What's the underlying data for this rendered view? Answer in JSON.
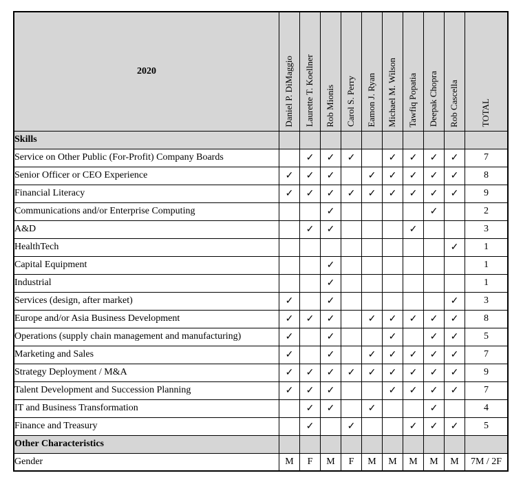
{
  "header": {
    "year": "2020",
    "names": [
      "Daniel P. DiMaggio",
      "Laurette T. Koellner",
      "Rob Mionis",
      "Carol S. Perry",
      "Eamon J. Ryan",
      "Michael M. Wilson",
      "Tawfiq Popatia",
      "Deepak Chopra",
      "Rob Cascella"
    ],
    "total_label": "TOTAL"
  },
  "check_glyph": "✓",
  "colors": {
    "header_fill": "#d6d6d6",
    "border": "#000000",
    "text": "#000000"
  },
  "rows": [
    {
      "type": "section",
      "label": "Skills",
      "cells": [
        "",
        "",
        "",
        "",
        "",
        "",
        "",
        "",
        ""
      ],
      "total": ""
    },
    {
      "type": "data",
      "label": "Service on Other Public (For-Profit) Company Boards",
      "cells": [
        "",
        "✓",
        "✓",
        "✓",
        "",
        "✓",
        "✓",
        "✓",
        "✓"
      ],
      "total": "7"
    },
    {
      "type": "data",
      "label": "Senior Officer or CEO Experience",
      "cells": [
        "✓",
        "✓",
        "✓",
        "",
        "✓",
        "✓",
        "✓",
        "✓",
        "✓"
      ],
      "total": "8"
    },
    {
      "type": "data",
      "label": "Financial Literacy",
      "cells": [
        "✓",
        "✓",
        "✓",
        "✓",
        "✓",
        "✓",
        "✓",
        "✓",
        "✓"
      ],
      "total": "9"
    },
    {
      "type": "data",
      "label": "Communications and/or Enterprise Computing",
      "cells": [
        "",
        "",
        "✓",
        "",
        "",
        "",
        "",
        "✓",
        ""
      ],
      "total": "2"
    },
    {
      "type": "data",
      "label": "A&D",
      "cells": [
        "",
        "✓",
        "✓",
        "",
        "",
        "",
        "✓",
        "",
        ""
      ],
      "total": "3"
    },
    {
      "type": "data",
      "label": "HealthTech",
      "cells": [
        "",
        "",
        "",
        "",
        "",
        "",
        "",
        "",
        "✓"
      ],
      "total": "1"
    },
    {
      "type": "data",
      "label": "Capital Equipment",
      "cells": [
        "",
        "",
        "✓",
        "",
        "",
        "",
        "",
        "",
        ""
      ],
      "total": "1"
    },
    {
      "type": "data",
      "label": "Industrial",
      "cells": [
        "",
        "",
        "✓",
        "",
        "",
        "",
        "",
        "",
        ""
      ],
      "total": "1"
    },
    {
      "type": "data",
      "label": "Services (design, after market)",
      "cells": [
        "✓",
        "",
        "✓",
        "",
        "",
        "",
        "",
        "",
        "✓"
      ],
      "total": "3"
    },
    {
      "type": "data",
      "label": "Europe and/or Asia Business Development",
      "cells": [
        "✓",
        "✓",
        "✓",
        "",
        "✓",
        "✓",
        "✓",
        "✓",
        "✓"
      ],
      "total": "8"
    },
    {
      "type": "data",
      "label": "Operations (supply chain management and manufacturing)",
      "cells": [
        "✓",
        "",
        "✓",
        "",
        "",
        "✓",
        "",
        "✓",
        "✓"
      ],
      "total": "5"
    },
    {
      "type": "data",
      "label": "Marketing and Sales",
      "cells": [
        "✓",
        "",
        "✓",
        "",
        "✓",
        "✓",
        "✓",
        "✓",
        "✓"
      ],
      "total": "7"
    },
    {
      "type": "data",
      "label": "Strategy Deployment / M&A",
      "cells": [
        "✓",
        "✓",
        "✓",
        "✓",
        "✓",
        "✓",
        "✓",
        "✓",
        "✓"
      ],
      "total": "9"
    },
    {
      "type": "data",
      "label": "Talent Development and Succession Planning",
      "cells": [
        "✓",
        "✓",
        "✓",
        "",
        "",
        "✓",
        "✓",
        "✓",
        "✓"
      ],
      "total": "7"
    },
    {
      "type": "data",
      "label": "IT and Business Transformation",
      "cells": [
        "",
        "✓",
        "✓",
        "",
        "✓",
        "",
        "",
        "✓",
        ""
      ],
      "total": "4"
    },
    {
      "type": "data",
      "label": "Finance and Treasury",
      "cells": [
        "",
        "✓",
        "",
        "✓",
        "",
        "",
        "✓",
        "✓",
        "✓"
      ],
      "total": "5"
    },
    {
      "type": "section",
      "label": "Other Characteristics",
      "cells": [
        "",
        "",
        "",
        "",
        "",
        "",
        "",
        "",
        ""
      ],
      "total": ""
    },
    {
      "type": "data",
      "label": "Gender",
      "cells": [
        "M",
        "F",
        "M",
        "F",
        "M",
        "M",
        "M",
        "M",
        "M"
      ],
      "total": "7M / 2F"
    }
  ]
}
